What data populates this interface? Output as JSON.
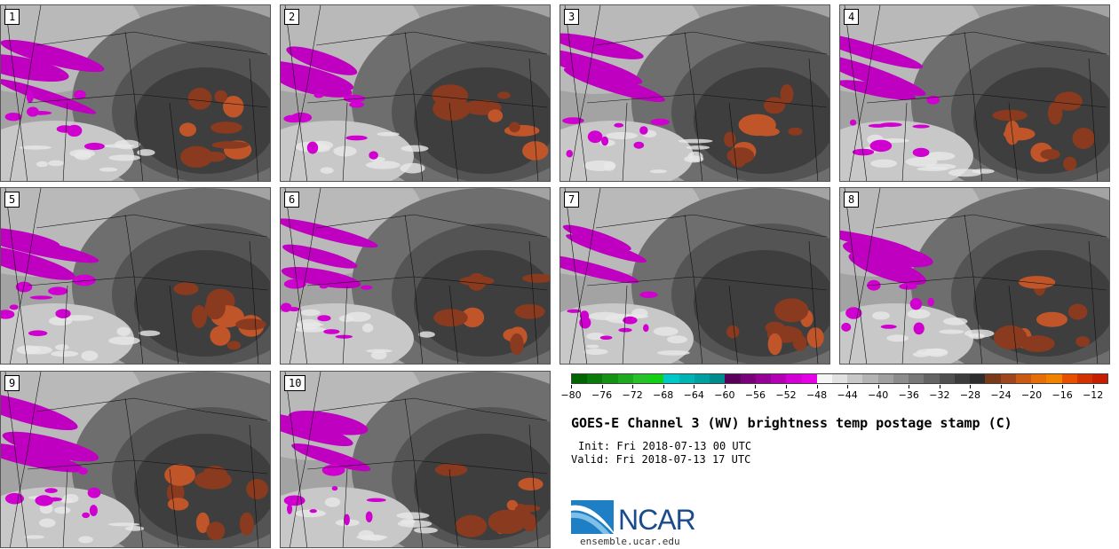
{
  "panels": [
    {
      "label": "1"
    },
    {
      "label": "2"
    },
    {
      "label": "3"
    },
    {
      "label": "4"
    },
    {
      "label": "5"
    },
    {
      "label": "6"
    },
    {
      "label": "7"
    },
    {
      "label": "8"
    },
    {
      "label": "9"
    },
    {
      "label": "10"
    }
  ],
  "chart_data": {
    "type": "heatmap",
    "title": "GOES-E Channel 3 (WV) brightness temp postage stamp (C)",
    "init": "Init: Fri 2018-07-13 00 UTC",
    "valid": "Valid: Fri 2018-07-13 17 UTC",
    "units": "C",
    "colorbar": {
      "min": -80,
      "max": -10,
      "tick_labels": [
        "−80",
        "−76",
        "−72",
        "−68",
        "−64",
        "−60",
        "−56",
        "−52",
        "−48",
        "−44",
        "−40",
        "−36",
        "−32",
        "−28",
        "−24",
        "−20",
        "−16",
        "−12"
      ],
      "tick_values": [
        -80,
        -76,
        -72,
        -68,
        -64,
        -60,
        -56,
        -52,
        -48,
        -44,
        -40,
        -36,
        -32,
        -28,
        -24,
        -20,
        -16,
        -12
      ],
      "colors": [
        "#006400",
        "#0a7a0a",
        "#149214",
        "#1eaa1e",
        "#28c228",
        "#14d014",
        "#00c8c8",
        "#00b4b4",
        "#00a0a0",
        "#008c8c",
        "#5a005a",
        "#780078",
        "#960096",
        "#b400b4",
        "#d200d2",
        "#e600e6",
        "#f5f5f5",
        "#e1e1e1",
        "#c8c8c8",
        "#b4b4b4",
        "#a0a0a0",
        "#8c8c8c",
        "#787878",
        "#646464",
        "#505050",
        "#3c3c3c",
        "#2d2d2d",
        "#7a3a1a",
        "#a0461e",
        "#c85a14",
        "#e66e0a",
        "#f08200",
        "#e65000",
        "#d23200",
        "#c81e00"
      ]
    },
    "ensemble_members": 10
  },
  "logo": {
    "name": "NCAR",
    "url": "ensemble.ucar.edu"
  }
}
